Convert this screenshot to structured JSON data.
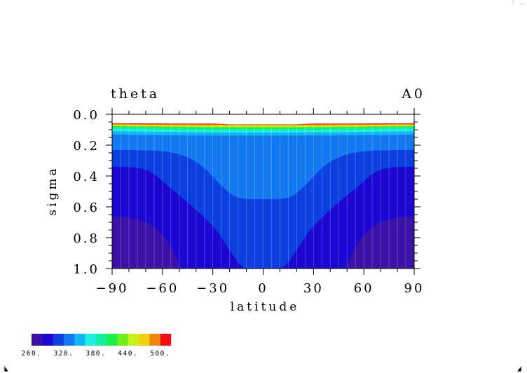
{
  "chart_data": {
    "type": "contour",
    "title": "theta",
    "title_right": "A0",
    "xlabel": "latitude",
    "ylabel": "sigma",
    "xlim": [
      -90,
      90
    ],
    "ylim": [
      1.0,
      0.0
    ],
    "x_ticks": [
      -90,
      -60,
      -30,
      0,
      30,
      60,
      90
    ],
    "x_tick_labels": [
      "−90",
      "−60",
      "−30",
      "0",
      "30",
      "60",
      "90"
    ],
    "y_ticks": [
      0.0,
      0.2,
      0.4,
      0.6,
      0.8,
      1.0
    ],
    "y_tick_labels": [
      "0.0",
      "0.2",
      "0.4",
      "0.6",
      "0.8",
      "1.0"
    ],
    "contour_levels": [
      260,
      280,
      300,
      320,
      340,
      360,
      380,
      400,
      420,
      440,
      460,
      480,
      500
    ],
    "colorbar": {
      "colors": [
        "#3b11a8",
        "#1b06d2",
        "#0b3fe0",
        "#1279f0",
        "#10b7f5",
        "#1ef0e0",
        "#10f0a0",
        "#19f048",
        "#6ff01a",
        "#c8f01a",
        "#f0d010",
        "#f08810",
        "#f01010"
      ],
      "tick_labels": [
        "260.",
        "320.",
        "380.",
        "440.",
        "500."
      ]
    },
    "regions": [
      {
        "level_from": 260,
        "level_to": 280,
        "color": "#3b11a8",
        "boundary": [
          [
            -90,
            0.66
          ],
          [
            -80,
            0.67
          ],
          [
            -70,
            0.7
          ],
          [
            -62,
            0.76
          ],
          [
            -55,
            0.86
          ],
          [
            -50,
            0.98
          ],
          [
            -50,
            1.0
          ],
          [
            -90,
            1.0
          ]
        ]
      },
      {
        "level_from": 260,
        "level_to": 280,
        "color": "#3b11a8",
        "boundary": [
          [
            90,
            0.66
          ],
          [
            80,
            0.67
          ],
          [
            70,
            0.7
          ],
          [
            62,
            0.76
          ],
          [
            55,
            0.86
          ],
          [
            50,
            0.98
          ],
          [
            50,
            1.0
          ],
          [
            90,
            1.0
          ]
        ]
      },
      {
        "level_from": 280,
        "level_to": 300,
        "color": "#1b06d2",
        "boundary": [
          [
            -90,
            0.34
          ],
          [
            -70,
            0.36
          ],
          [
            -55,
            0.48
          ],
          [
            -40,
            0.62
          ],
          [
            -28,
            0.75
          ],
          [
            -20,
            0.88
          ],
          [
            -10,
            1.0
          ],
          [
            10,
            1.0
          ],
          [
            20,
            0.88
          ],
          [
            28,
            0.75
          ],
          [
            40,
            0.62
          ],
          [
            55,
            0.48
          ],
          [
            70,
            0.36
          ],
          [
            90,
            0.34
          ],
          [
            90,
            1.0
          ],
          [
            -90,
            1.0
          ]
        ]
      },
      {
        "level_from": 300,
        "level_to": 320,
        "color": "#0b3fe0",
        "boundary": [
          [
            -90,
            0.23
          ],
          [
            90,
            0.23
          ],
          [
            90,
            1.0
          ],
          [
            -90,
            1.0
          ]
        ]
      }
    ]
  }
}
